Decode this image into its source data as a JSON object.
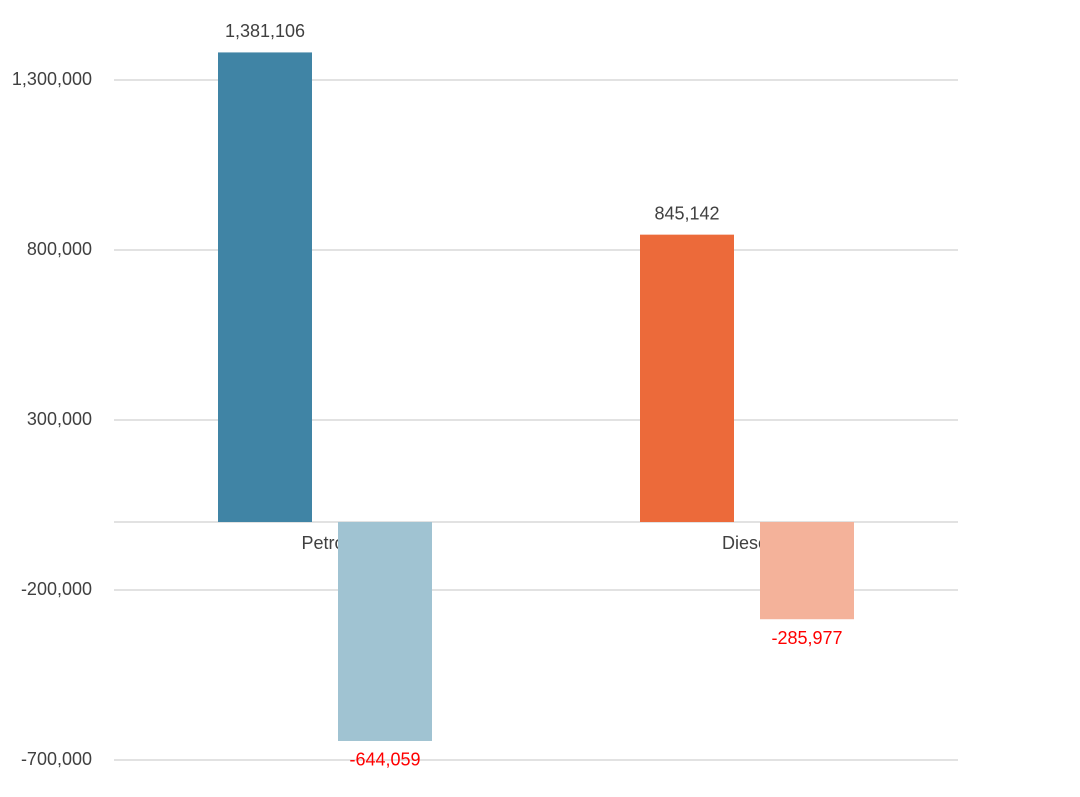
{
  "chart_data": {
    "type": "bar",
    "categories": [
      "Petrol",
      "Diesel"
    ],
    "series": [
      {
        "values": [
          1381106,
          845142
        ],
        "value_labels": [
          "1,381,106",
          "845,142"
        ],
        "colors": [
          "#4084a5",
          "#ec6a3a"
        ],
        "label_color": "#404040"
      },
      {
        "values": [
          -644059,
          -285977
        ],
        "value_labels": [
          "-644,059",
          "-285,977"
        ],
        "colors": [
          "#a0c3d2",
          "#f4b29a"
        ],
        "label_color": "#ff0000"
      }
    ],
    "ylim": [
      -700000,
      1400000
    ],
    "yticks": [
      {
        "value": -700000,
        "label": "-700,000"
      },
      {
        "value": -200000,
        "label": "-200,000"
      },
      {
        "value": 300000,
        "label": "300,000"
      },
      {
        "value": 800000,
        "label": "800,000"
      },
      {
        "value": 1300000,
        "label": "1,300,000"
      }
    ],
    "grid": true
  }
}
